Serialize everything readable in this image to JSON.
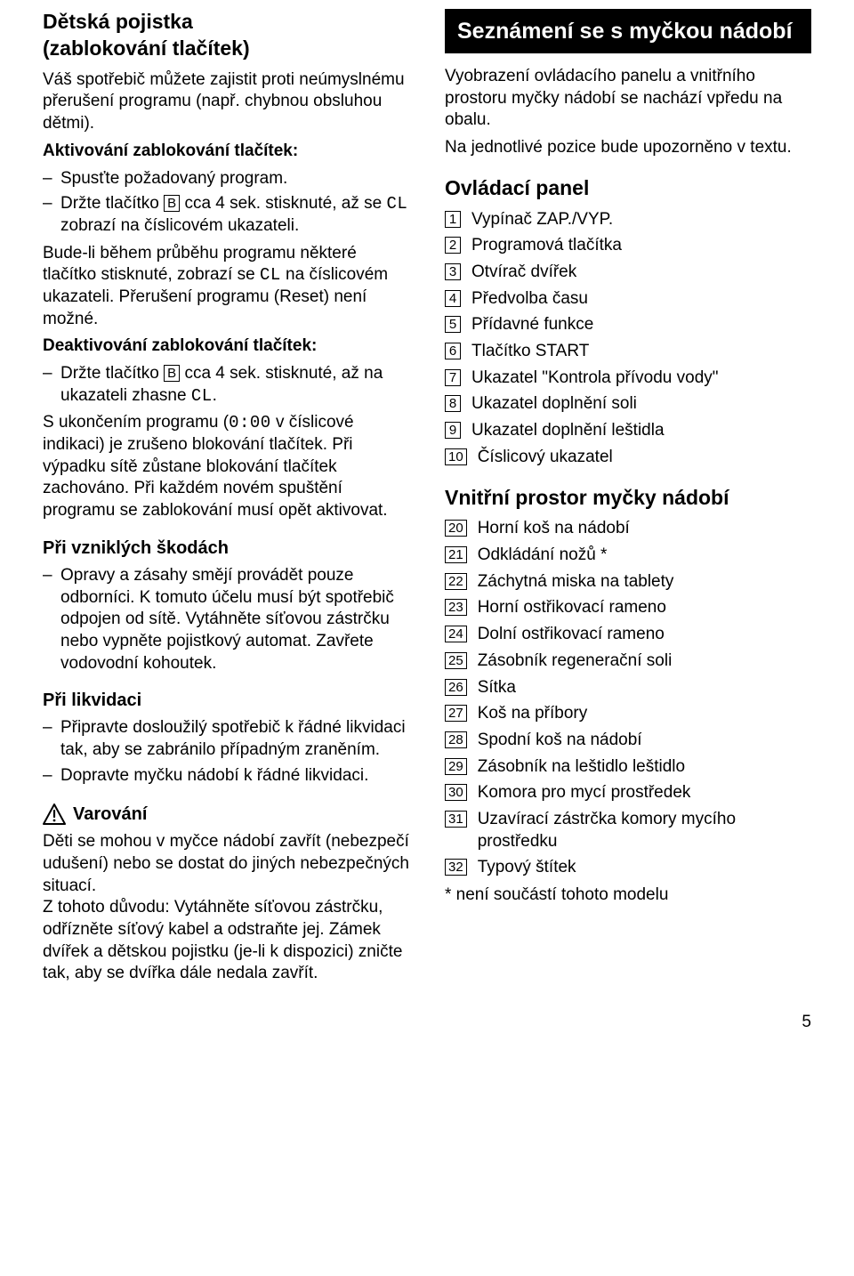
{
  "page_number": "5",
  "left": {
    "title1_l1": "Dětská pojistka",
    "title1_l2": "(zablokování tlačítek)",
    "p1": "Váš spotřebič můžete zajistit proti neúmyslnému přerušení programu (např. chybnou obsluhou dětmi).",
    "act_label": "Aktivování zablokování tlačítek:",
    "act_li1": "Spusťte požadovaný program.",
    "act_li2a": "Držte tlačítko ",
    "act_li2_btn": "B",
    "act_li2b": " cca 4 sek. stisknuté, až se ",
    "act_li2_seg": "CL",
    "act_li2c": " zobrazí na číslicovém ukazateli.",
    "p2a": "Bude-li během průběhu programu některé tlačítko stisknuté, zobrazí se ",
    "p2_seg": "CL",
    "p2b": " na číslicovém ukazateli. Přerušení programu (Reset) není možné.",
    "deact_label": "Deaktivování zablokování tlačítek:",
    "deact_li1a": "Držte tlačítko ",
    "deact_li1_btn": "B",
    "deact_li1b": " cca 4 sek. stisknuté, až na ukazateli zhasne ",
    "deact_li1_seg": "CL",
    "deact_li1c": ".",
    "p3a": "S ukončením programu (",
    "p3_seg": "0:00",
    "p3b": " v číslicové indikaci) je zrušeno blokování tlačítek. Při výpadku sítě zůstane blokování tlačítek zachováno. Při každém novém spuštění programu se zablokování musí opět aktivovat.",
    "h_damage": "Při vzniklých škodách",
    "damage_li1": "Opravy a zásahy smějí provádět pouze odborníci. K tomuto účelu musí být spotřebič odpojen od sítě. Vytáhněte síťovou zástrčku nebo vypněte pojistkový automat. Zavřete vodovodní kohoutek.",
    "h_disposal": "Při likvidaci",
    "disp_li1": "Připravte dosloužilý spotřebič k řádné likvidaci tak, aby se zabránilo případným zraněním.",
    "disp_li2": "Dopravte myčku nádobí k řádné likvidaci.",
    "warn_label": "Varování",
    "warn_p": "Děti se mohou v myčce nádobí zavřít (nebezpečí udušení) nebo se dostat do jiných nebezpečných situací.\nZ tohoto důvodu: Vytáhněte síťovou zástrčku, odřízněte síťový kabel a odstraňte jej. Zámek dvířek a dětskou pojistku (je-li k dispozici) zničte tak, aby se dvířka dále nedala zavřít."
  },
  "right": {
    "bar_title": "Seznámení se s myčkou nádobí",
    "intro1": "Vyobrazení ovládacího panelu a vnitřního prostoru myčky nádobí se nachází vpředu na obalu.",
    "intro2": "Na jednotlivé pozice bude upozorněno v textu.",
    "h_panel": "Ovládací panel",
    "panel": [
      {
        "n": "1",
        "t": "Vypínač ZAP./VYP."
      },
      {
        "n": "2",
        "t": "Programová tlačítka"
      },
      {
        "n": "3",
        "t": "Otvírač dvířek"
      },
      {
        "n": "4",
        "t": "Předvolba času"
      },
      {
        "n": "5",
        "t": "Přídavné funkce"
      },
      {
        "n": "6",
        "t": "Tlačítko START"
      },
      {
        "n": "7",
        "t": "Ukazatel \"Kontrola přívodu vody\""
      },
      {
        "n": "8",
        "t": "Ukazatel doplnění soli"
      },
      {
        "n": "9",
        "t": "Ukazatel doplnění leštidla"
      },
      {
        "n": "10",
        "t": "Číslicový ukazatel"
      }
    ],
    "h_interior": "Vnitřní prostor myčky nádobí",
    "interior": [
      {
        "n": "20",
        "t": "Horní koš na nádobí"
      },
      {
        "n": "21",
        "t": "Odkládání nožů *"
      },
      {
        "n": "22",
        "t": "Záchytná miska na tablety"
      },
      {
        "n": "23",
        "t": "Horní ostřikovací rameno"
      },
      {
        "n": "24",
        "t": "Dolní ostřikovací rameno"
      },
      {
        "n": "25",
        "t": "Zásobník regenerační soli"
      },
      {
        "n": "26",
        "t": "Sítka"
      },
      {
        "n": "27",
        "t": "Koš na příbory"
      },
      {
        "n": "28",
        "t": "Spodní koš na nádobí"
      },
      {
        "n": "29",
        "t": "Zásobník na leštidlo leštidlo"
      },
      {
        "n": "30",
        "t": "Komora pro mycí prostředek"
      },
      {
        "n": "31",
        "t": "Uzavírací zástrčka komory mycího prostředku"
      },
      {
        "n": "32",
        "t": "Typový štítek"
      }
    ],
    "footnote": "* není součástí tohoto modelu"
  }
}
